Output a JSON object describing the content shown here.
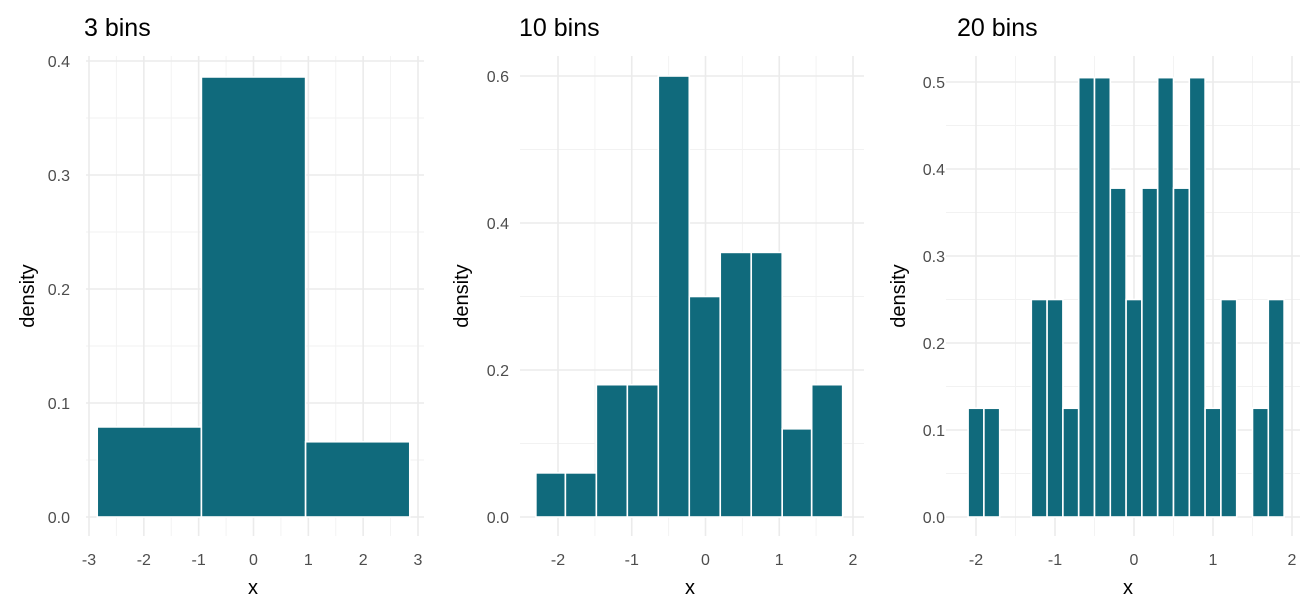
{
  "chart_data": [
    {
      "type": "bar",
      "title": "3 bins",
      "xlabel": "x",
      "ylabel": "density",
      "bar_color": "#106a7c",
      "xlim": [
        -2.85,
        2.85
      ],
      "ylim": [
        0,
        0.4
      ],
      "x_ticks": [
        -3,
        -2,
        -1,
        0,
        1,
        2,
        3
      ],
      "x_tick_labels": [
        "-3",
        "-2",
        "-1",
        "0",
        "1",
        "2",
        "3"
      ],
      "y_ticks": [
        0,
        0.1,
        0.2,
        0.3,
        0.4
      ],
      "y_tick_labels": [
        "0.0",
        "0.1",
        "0.2",
        "0.3",
        "0.4"
      ],
      "bins": [
        {
          "x0": -2.85,
          "x1": -0.95,
          "value": 0.079
        },
        {
          "x0": -0.95,
          "x1": 0.95,
          "value": 0.386
        },
        {
          "x0": 0.95,
          "x1": 2.85,
          "value": 0.066
        }
      ]
    },
    {
      "type": "bar",
      "title": "10 bins",
      "xlabel": "x",
      "ylabel": "density",
      "bar_color": "#106a7c",
      "xlim": [
        -2.3,
        1.86
      ],
      "ylim": [
        0,
        0.6
      ],
      "x_ticks": [
        -2,
        -1,
        0,
        1,
        2
      ],
      "x_tick_labels": [
        "-2",
        "-1",
        "0",
        "1",
        "2"
      ],
      "y_ticks": [
        0,
        0.2,
        0.4,
        0.6
      ],
      "y_tick_labels": [
        "0.0",
        "0.2",
        "0.4",
        "0.6"
      ],
      "bins": [
        {
          "x0": -2.3,
          "x1": -1.9,
          "value": 0.06
        },
        {
          "x0": -1.9,
          "x1": -1.48,
          "value": 0.06
        },
        {
          "x0": -1.48,
          "x1": -1.06,
          "value": 0.18
        },
        {
          "x0": -1.06,
          "x1": -0.64,
          "value": 0.18
        },
        {
          "x0": -0.64,
          "x1": -0.22,
          "value": 0.6
        },
        {
          "x0": -0.22,
          "x1": 0.2,
          "value": 0.3
        },
        {
          "x0": 0.2,
          "x1": 0.62,
          "value": 0.36
        },
        {
          "x0": 0.62,
          "x1": 1.04,
          "value": 0.36
        },
        {
          "x0": 1.04,
          "x1": 1.44,
          "value": 0.12
        },
        {
          "x0": 1.44,
          "x1": 1.86,
          "value": 0.18
        }
      ]
    },
    {
      "type": "bar",
      "title": "20 bins",
      "xlabel": "x",
      "ylabel": "density",
      "bar_color": "#106a7c",
      "xlim": [
        -2.1,
        1.86
      ],
      "ylim": [
        0,
        0.5
      ],
      "x_ticks": [
        -2,
        -1,
        0,
        1,
        2
      ],
      "x_tick_labels": [
        "-2",
        "-1",
        "0",
        "1",
        "2"
      ],
      "y_ticks": [
        0,
        0.1,
        0.2,
        0.3,
        0.4,
        0.5
      ],
      "y_tick_labels": [
        "0.0",
        "0.1",
        "0.2",
        "0.3",
        "0.4",
        "0.5"
      ],
      "bins": [
        {
          "x0": -2.1,
          "x1": -1.9,
          "value": 0.125
        },
        {
          "x0": -1.9,
          "x1": -1.7,
          "value": 0.125
        },
        {
          "x0": -1.7,
          "x1": -1.5,
          "value": 0
        },
        {
          "x0": -1.5,
          "x1": -1.3,
          "value": 0
        },
        {
          "x0": -1.3,
          "x1": -1.1,
          "value": 0.25
        },
        {
          "x0": -1.1,
          "x1": -0.9,
          "value": 0.25
        },
        {
          "x0": -0.9,
          "x1": -0.7,
          "value": 0.125
        },
        {
          "x0": -0.7,
          "x1": -0.5,
          "value": 0.505
        },
        {
          "x0": -0.5,
          "x1": -0.3,
          "value": 0.505
        },
        {
          "x0": -0.3,
          "x1": -0.1,
          "value": 0.378
        },
        {
          "x0": -0.1,
          "x1": 0.1,
          "value": 0.25
        },
        {
          "x0": 0.1,
          "x1": 0.3,
          "value": 0.378
        },
        {
          "x0": 0.3,
          "x1": 0.5,
          "value": 0.505
        },
        {
          "x0": 0.5,
          "x1": 0.7,
          "value": 0.378
        },
        {
          "x0": 0.7,
          "x1": 0.9,
          "value": 0.505
        },
        {
          "x0": 0.9,
          "x1": 1.1,
          "value": 0.125
        },
        {
          "x0": 1.1,
          "x1": 1.3,
          "value": 0.25
        },
        {
          "x0": 1.3,
          "x1": 1.5,
          "value": 0
        },
        {
          "x0": 1.5,
          "x1": 1.7,
          "value": 0.125
        },
        {
          "x0": 1.7,
          "x1": 1.9,
          "value": 0.25
        }
      ]
    }
  ]
}
